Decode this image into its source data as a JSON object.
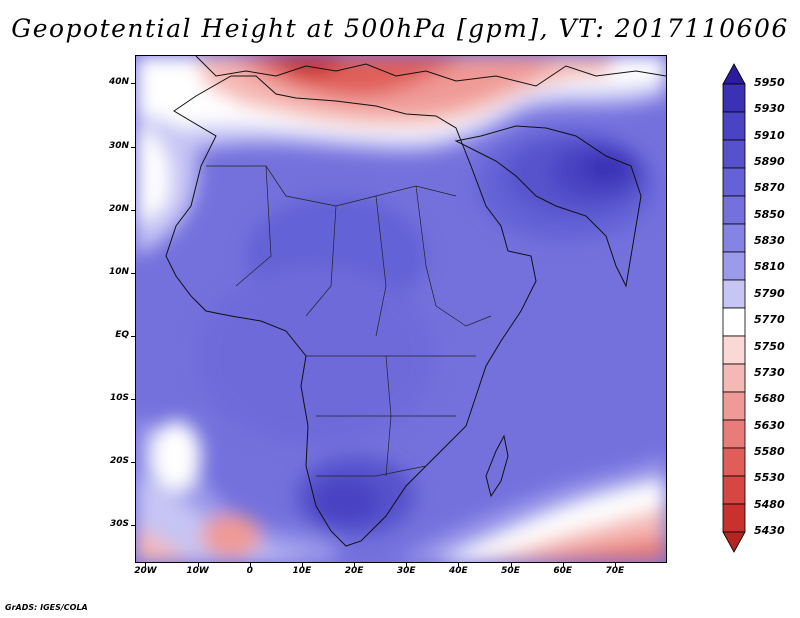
{
  "title": "Geopotential Height at 500hPa [gpm], VT: 2017110606",
  "credit": "GrADS: IGES/COLA",
  "y_axis": [
    {
      "label": "40N",
      "value": 40
    },
    {
      "label": "30N",
      "value": 30
    },
    {
      "label": "20N",
      "value": 20
    },
    {
      "label": "10N",
      "value": 10
    },
    {
      "label": "EQ",
      "value": 0
    },
    {
      "label": "10S",
      "value": -10
    },
    {
      "label": "20S",
      "value": -20
    },
    {
      "label": "30S",
      "value": -30
    }
  ],
  "x_axis": [
    {
      "label": "20W",
      "value": -20
    },
    {
      "label": "10W",
      "value": -10
    },
    {
      "label": "0",
      "value": 0
    },
    {
      "label": "10E",
      "value": 10
    },
    {
      "label": "20E",
      "value": 20
    },
    {
      "label": "30E",
      "value": 30
    },
    {
      "label": "40E",
      "value": 40
    },
    {
      "label": "50E",
      "value": 50
    },
    {
      "label": "60E",
      "value": 60
    },
    {
      "label": "70E",
      "value": 70
    }
  ],
  "map_extent": {
    "lon": [
      -22,
      80
    ],
    "lat": [
      -36,
      44.5
    ]
  },
  "legend": {
    "levels": [
      "5950",
      "5930",
      "5910",
      "5890",
      "5870",
      "5850",
      "5830",
      "5810",
      "5790",
      "5770",
      "5750",
      "5730",
      "5680",
      "5630",
      "5580",
      "5530",
      "5480",
      "5430"
    ],
    "colors": [
      "#2a1c9c",
      "#3b31b5",
      "#4a43c3",
      "#5652cc",
      "#6462d6",
      "#7471dd",
      "#8583e4",
      "#9b9aeb",
      "#c6c5f4",
      "#ffffff",
      "#fad8d6",
      "#f5b9b5",
      "#ef9a96",
      "#e87c78",
      "#e05e5a",
      "#d64744",
      "#c8312e",
      "#b42522"
    ]
  },
  "colors": {
    "landline": "#111111",
    "ocean_base": "#7876e0"
  }
}
